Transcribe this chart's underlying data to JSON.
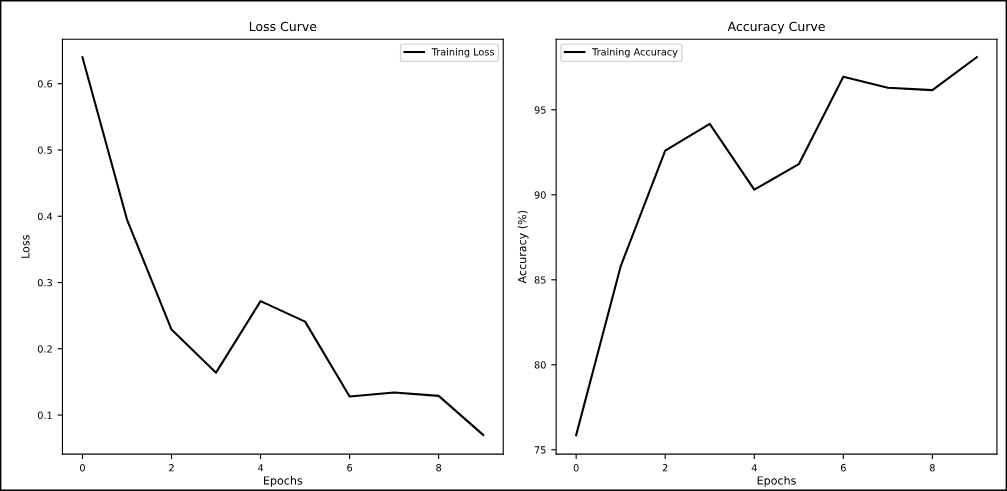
{
  "chart_data": [
    {
      "type": "line",
      "title": "Loss Curve",
      "xlabel": "Epochs",
      "ylabel": "Loss",
      "x": [
        0,
        1,
        2,
        3,
        4,
        5,
        6,
        7,
        8,
        9
      ],
      "series": [
        {
          "name": "Training Loss",
          "color": "#000000",
          "values": [
            0.64,
            0.395,
            0.229,
            0.164,
            0.272,
            0.241,
            0.128,
            0.134,
            0.129,
            0.07
          ]
        }
      ],
      "xlim": [
        -0.45,
        9.45
      ],
      "xticks": [
        0,
        2,
        4,
        6,
        8
      ],
      "ylim": [
        0.041,
        0.667
      ],
      "yticks": [
        0.1,
        0.2,
        0.3,
        0.4,
        0.5,
        0.6
      ],
      "legend": "top right",
      "grid": false
    },
    {
      "type": "line",
      "title": "Accuracy Curve",
      "xlabel": "Epochs",
      "ylabel": "Accuracy (%)",
      "x": [
        0,
        1,
        2,
        3,
        4,
        5,
        6,
        7,
        8,
        9
      ],
      "series": [
        {
          "name": "Training Accuracy",
          "color": "#000000",
          "values": [
            75.86,
            85.8,
            92.6,
            94.17,
            90.3,
            91.8,
            96.95,
            96.3,
            96.16,
            98.1
          ]
        }
      ],
      "xlim": [
        -0.45,
        9.45
      ],
      "xticks": [
        0,
        2,
        4,
        6,
        8
      ],
      "ylim": [
        74.74,
        99.15
      ],
      "yticks": [
        75,
        80,
        85,
        90,
        95
      ],
      "legend": "top left",
      "grid": false
    }
  ]
}
